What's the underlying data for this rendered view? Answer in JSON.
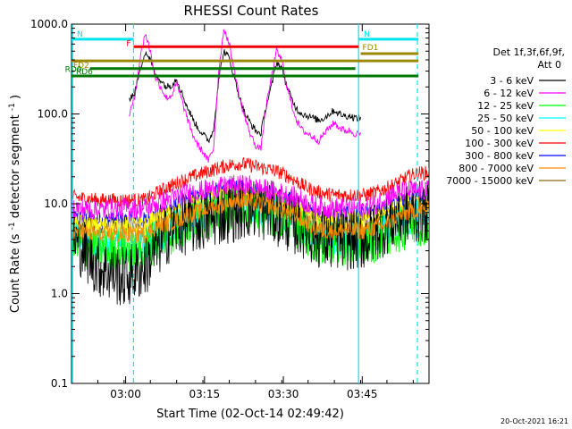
{
  "chart_data": {
    "type": "line",
    "title": "RHESSI Count Rates",
    "xlabel": "Start Time (02-Oct-14 02:49:42)",
    "ylabel": "Count Rate (s⁻¹ detector segment⁻¹)",
    "ylabel_parts": {
      "main": "Count Rate (s",
      "sup1": "-1",
      "mid": " detector segment",
      "sup2": "-1",
      "end": ")"
    },
    "y_scale": "log",
    "ylim": [
      0.1,
      1000
    ],
    "xlim_minutes": [
      0,
      68
    ],
    "x_ticks": [
      {
        "t": 10.3,
        "label": "03:00"
      },
      {
        "t": 25.3,
        "label": "03:15"
      },
      {
        "t": 40.3,
        "label": "03:30"
      },
      {
        "t": 55.3,
        "label": "03:45"
      },
      {
        "t": 70.3,
        "label": "04:00"
      },
      {
        "t": 85.3,
        "label": "04:15"
      }
    ],
    "y_ticks": [
      {
        "v": 0.1,
        "label": "0.1"
      },
      {
        "v": 1,
        "label": "1.0"
      },
      {
        "v": 10,
        "label": "10.0"
      },
      {
        "v": 100,
        "label": "100.0"
      },
      {
        "v": 1000,
        "label": "1000.0"
      }
    ],
    "legend": {
      "header": [
        "Det 1f,3f,6f,9f,",
        "Att 0"
      ],
      "placement": "right"
    },
    "series": [
      {
        "name": "3 - 6 keV",
        "color": "#000000",
        "x_minutes": [
          0,
          5,
          10,
          14,
          15,
          16,
          18,
          20,
          22,
          24,
          25,
          28,
          30,
          32,
          34,
          35,
          38,
          40,
          42,
          44,
          45,
          46,
          48,
          50,
          52,
          54,
          56,
          58,
          60,
          62,
          64,
          66,
          68
        ],
        "values": [
          4.5,
          2,
          1.5,
          2,
          2.5,
          3,
          4.5,
          5.5,
          6,
          6,
          6.5,
          7.5,
          8,
          8.5,
          9,
          9,
          8,
          7,
          6,
          5.5,
          5,
          4.5,
          4,
          4,
          4,
          4,
          4,
          5,
          6,
          7,
          7.5,
          8,
          8
        ]
      },
      {
        "name": "6 - 12 keV",
        "color": "#ff00ff",
        "x_minutes": [
          0,
          5,
          10,
          14,
          15,
          16,
          18,
          20,
          22,
          24,
          25,
          28,
          30,
          32,
          34,
          35,
          38,
          40,
          42,
          44,
          45,
          46,
          48,
          50,
          52,
          54,
          56,
          58,
          60,
          62,
          64,
          66,
          68
        ],
        "values": [
          9,
          8.5,
          9,
          9,
          9.5,
          10,
          11,
          12,
          13,
          14,
          14,
          15,
          16,
          16,
          16,
          15,
          14,
          13,
          12,
          11,
          10,
          9.5,
          9,
          9,
          9,
          9,
          9,
          10,
          12,
          13,
          14,
          14,
          14
        ]
      },
      {
        "name": "12 - 25 keV",
        "color": "#00ff00",
        "x_minutes": [
          0,
          5,
          10,
          14,
          15,
          16,
          18,
          20,
          22,
          24,
          25,
          28,
          30,
          32,
          34,
          35,
          38,
          40,
          42,
          44,
          45,
          46,
          48,
          50,
          52,
          54,
          56,
          58,
          60,
          62,
          64,
          66,
          68
        ],
        "values": [
          3.5,
          3,
          3,
          3,
          3.5,
          4,
          4.5,
          5,
          6,
          6.5,
          7,
          8,
          9,
          9.5,
          9,
          8.5,
          8,
          7,
          6,
          5,
          4.5,
          4,
          3.5,
          3.5,
          3.5,
          3.5,
          3.5,
          4,
          4.5,
          5,
          5.5,
          6,
          6
        ]
      },
      {
        "name": "25 - 50 keV",
        "color": "#00ffff",
        "x_minutes": [
          0,
          5,
          10,
          14,
          15,
          16,
          18,
          20,
          22,
          24,
          25,
          28,
          30,
          32,
          34,
          35,
          38,
          40,
          42,
          44,
          45,
          46,
          48,
          50,
          52,
          54,
          56,
          58,
          60,
          62,
          64,
          66,
          68
        ],
        "values": [
          4,
          3.5,
          3.5,
          3.5,
          4,
          4.5,
          5,
          5.5,
          6.5,
          7,
          7.5,
          8.5,
          9.5,
          10,
          9.5,
          9,
          8.5,
          7.5,
          6.5,
          5.5,
          5,
          4.5,
          4,
          4,
          4,
          4,
          4,
          4.5,
          5,
          6,
          7,
          7.5,
          7.5
        ]
      },
      {
        "name": "50 - 100 keV",
        "color": "#ffff00",
        "x_minutes": [
          0,
          5,
          10,
          14,
          15,
          16,
          18,
          20,
          22,
          24,
          25,
          28,
          30,
          32,
          34,
          35,
          38,
          40,
          42,
          44,
          45,
          46,
          48,
          50,
          52,
          54,
          56,
          58,
          60,
          62,
          64,
          66,
          68
        ],
        "values": [
          6,
          5.5,
          5.5,
          5.5,
          6,
          6.5,
          7,
          8,
          9,
          10,
          10.5,
          12,
          13,
          13,
          12.5,
          12,
          11,
          10,
          9,
          8,
          7.5,
          7,
          6.5,
          6.5,
          6.5,
          6.5,
          6.5,
          7,
          8,
          9,
          10,
          10.5,
          10.5
        ]
      },
      {
        "name": "100 - 300 keV",
        "color": "#ff0000",
        "x_minutes": [
          0,
          5,
          10,
          14,
          15,
          16,
          18,
          20,
          22,
          24,
          25,
          28,
          30,
          32,
          34,
          35,
          38,
          40,
          42,
          44,
          45,
          46,
          48,
          50,
          52,
          54,
          56,
          58,
          60,
          62,
          64,
          66,
          68
        ],
        "values": [
          12,
          11,
          11,
          11,
          12,
          13,
          15,
          17,
          19,
          21,
          22,
          25,
          27,
          28,
          27,
          26,
          24,
          22,
          19,
          16,
          15,
          14,
          13,
          12.5,
          12.5,
          12.5,
          12.5,
          13.5,
          15,
          17,
          20,
          22,
          22
        ]
      },
      {
        "name": "300 - 800 keV",
        "color": "#0000ff",
        "x_minutes": [
          0,
          5,
          10,
          14,
          15,
          16,
          18,
          20,
          22,
          24,
          25,
          28,
          30,
          32,
          34,
          35,
          38,
          40,
          42,
          44,
          45,
          46,
          48,
          50,
          52,
          54,
          56,
          58,
          60,
          62,
          64,
          66,
          68
        ],
        "values": [
          7,
          6.5,
          6.5,
          6.5,
          7,
          7.5,
          8.5,
          9.5,
          11,
          12,
          12.5,
          14,
          15,
          15,
          14.5,
          14,
          13,
          12,
          10.5,
          9,
          8.5,
          8,
          7.5,
          7.5,
          7.5,
          7.5,
          7.5,
          8,
          9,
          10,
          11,
          12,
          12
        ]
      },
      {
        "name": "800 - 7000 keV",
        "color": "#ff8c00",
        "x_minutes": [
          0,
          5,
          10,
          14,
          15,
          16,
          18,
          20,
          22,
          24,
          25,
          28,
          30,
          32,
          34,
          35,
          38,
          40,
          42,
          44,
          45,
          46,
          48,
          50,
          52,
          54,
          56,
          58,
          60,
          62,
          64,
          66,
          68
        ],
        "values": [
          5,
          4.5,
          4.5,
          4.5,
          5,
          5.5,
          6,
          6.5,
          7.5,
          8,
          8.5,
          9.5,
          10.5,
          11,
          10.5,
          10,
          9.5,
          8.5,
          7.5,
          6.5,
          6,
          5.5,
          5,
          5,
          5,
          5,
          5,
          5.5,
          6,
          7,
          8,
          8.5,
          8.5
        ]
      },
      {
        "name": "7000 - 15000 keV",
        "color": "#8b6914",
        "x_minutes": [
          0,
          5,
          10,
          14,
          15,
          16,
          18,
          20,
          22,
          24,
          25,
          28,
          30,
          32,
          34,
          35,
          38,
          40,
          42,
          44,
          45,
          46,
          48,
          50,
          52,
          54,
          56,
          58,
          60,
          62,
          64,
          66,
          68
        ],
        "values": [
          6,
          5.5,
          5.5,
          5.5,
          6,
          6.5,
          7,
          7.5,
          8.5,
          9,
          9.5,
          10.5,
          11.5,
          12,
          11.5,
          11,
          10.5,
          9.5,
          8.5,
          7.5,
          7,
          6.5,
          6,
          6,
          6,
          6,
          6,
          6.5,
          7,
          8,
          9,
          9.5,
          9.5
        ]
      }
    ],
    "flare_low_energy_overlays": [
      {
        "name": "3 - 6 keV",
        "color": "#000000",
        "x_minutes": [
          11,
          12,
          13,
          14,
          15,
          16,
          17,
          18,
          19,
          20,
          21,
          22,
          23,
          24,
          25,
          26,
          27,
          28,
          29,
          30,
          31,
          32,
          33,
          34,
          35,
          36,
          37,
          38,
          39,
          40,
          41,
          42,
          43,
          44,
          45,
          46,
          47,
          48,
          49,
          50,
          51,
          52,
          53,
          54,
          55
        ],
        "values": [
          150,
          170,
          300,
          500,
          400,
          260,
          240,
          200,
          210,
          250,
          170,
          120,
          90,
          70,
          60,
          50,
          65,
          250,
          500,
          420,
          250,
          150,
          100,
          80,
          65,
          60,
          120,
          200,
          380,
          320,
          200,
          140,
          110,
          100,
          95,
          90,
          85,
          90,
          100,
          110,
          100,
          95,
          95,
          90,
          90
        ]
      },
      {
        "name": "6 - 12 keV",
        "color": "#ff00ff",
        "x_minutes": [
          11,
          12,
          13,
          14,
          15,
          16,
          17,
          18,
          19,
          20,
          21,
          22,
          23,
          24,
          25,
          26,
          27,
          28,
          29,
          30,
          31,
          32,
          33,
          34,
          35,
          36,
          37,
          38,
          39,
          40,
          41,
          42,
          43,
          44,
          45,
          46,
          47,
          48,
          49,
          50,
          51,
          52,
          53,
          54,
          55
        ],
        "values": [
          100,
          150,
          400,
          800,
          500,
          250,
          200,
          150,
          160,
          220,
          140,
          90,
          60,
          45,
          38,
          30,
          40,
          300,
          900,
          600,
          300,
          150,
          90,
          60,
          45,
          40,
          120,
          250,
          500,
          400,
          200,
          120,
          80,
          65,
          60,
          55,
          50,
          60,
          70,
          80,
          70,
          65,
          65,
          60,
          60
        ]
      }
    ],
    "annotations": {
      "attenuator_labels": [
        {
          "label": "N",
          "t_start": 0,
          "t_end": 11.8,
          "color": "#00e5ee",
          "level": 680
        },
        {
          "label": "F",
          "t_start": 11.8,
          "t_end": 54.6,
          "color": "#ee0000",
          "level": 560
        },
        {
          "label": "FD1",
          "t_start": 55,
          "t_end": 66,
          "color": "#998800",
          "level": 470
        },
        {
          "label": "FD2",
          "t_start": 0,
          "t_end": 66,
          "color": "#998800",
          "level": 390
        },
        {
          "label": "RD0",
          "t_start": 3.5,
          "t_end": 54,
          "color": "#007700",
          "level": 320
        },
        {
          "label": "RD6",
          "t_start": 0,
          "t_end": 66,
          "color": "#007700",
          "level": 265
        },
        {
          "label": "N",
          "t_start": 54.6,
          "t_end": 66,
          "color": "#00e5ee",
          "level": 680
        }
      ],
      "vertical_markers": [
        {
          "t": 11.8,
          "style": "dashed",
          "color": "#00e5ee"
        },
        {
          "t": 54.6,
          "style": "solid",
          "color": "#00e5ee"
        },
        {
          "t": 65.8,
          "style": "dashed",
          "color": "#00e5ee"
        }
      ],
      "footer": "20-Oct-2021 16:21"
    }
  }
}
